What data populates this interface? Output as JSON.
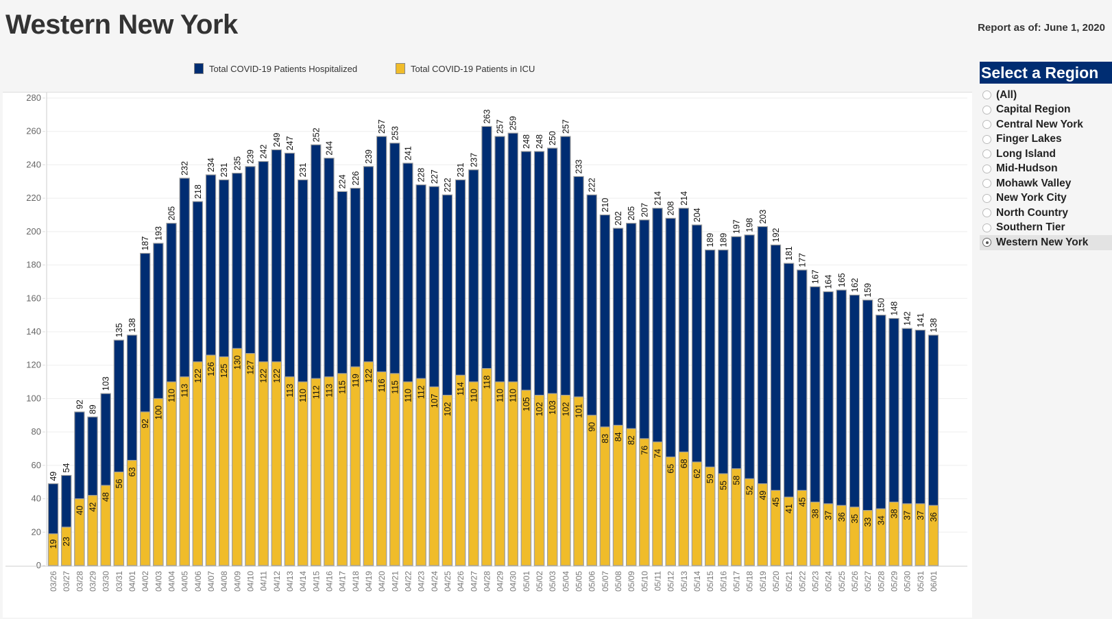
{
  "header": {
    "title": "Western New York",
    "report_date": "Report as of: June 1, 2020"
  },
  "legend": [
    {
      "label": "Total COVID-19 Patients Hospitalized",
      "color": "#002d72"
    },
    {
      "label": "Total COVID-19 Patients in ICU",
      "color": "#f0bc2a"
    }
  ],
  "region_selector": {
    "title": "Select a Region",
    "options": [
      "(All)",
      "Capital Region",
      "Central New York",
      "Finger Lakes",
      "Long Island",
      "Mid-Hudson",
      "Mohawk Valley",
      "New York City",
      "North Country",
      "Southern Tier",
      "Western New York"
    ],
    "selected": "Western New York"
  },
  "chart_data": {
    "type": "bar",
    "title": "",
    "xlabel": "",
    "ylabel": "",
    "ylim": [
      0,
      280
    ],
    "yticks": [
      0,
      20,
      40,
      60,
      80,
      100,
      120,
      140,
      160,
      180,
      200,
      220,
      240,
      260,
      280
    ],
    "grid": true,
    "legend_position": "top",
    "categories": [
      "03/26",
      "03/27",
      "03/28",
      "03/29",
      "03/30",
      "03/31",
      "04/01",
      "04/02",
      "04/03",
      "04/04",
      "04/05",
      "04/06",
      "04/07",
      "04/08",
      "04/09",
      "04/10",
      "04/11",
      "04/12",
      "04/13",
      "04/14",
      "04/15",
      "04/16",
      "04/17",
      "04/18",
      "04/19",
      "04/20",
      "04/21",
      "04/22",
      "04/23",
      "04/24",
      "04/25",
      "04/26",
      "04/27",
      "04/28",
      "04/29",
      "04/30",
      "05/01",
      "05/02",
      "05/03",
      "05/04",
      "05/05",
      "05/06",
      "05/07",
      "05/08",
      "05/09",
      "05/10",
      "05/11",
      "05/12",
      "05/13",
      "05/14",
      "05/15",
      "05/16",
      "05/17",
      "05/18",
      "05/19",
      "05/20",
      "05/21",
      "05/22",
      "05/23",
      "05/24",
      "05/25",
      "05/26",
      "05/27",
      "05/28",
      "05/29",
      "05/30",
      "05/31",
      "06/01"
    ],
    "series": [
      {
        "name": "Total COVID-19 Patients Hospitalized",
        "color": "#002d72",
        "values": [
          49,
          54,
          92,
          89,
          103,
          135,
          138,
          187,
          193,
          205,
          232,
          218,
          234,
          231,
          235,
          239,
          242,
          249,
          247,
          231,
          252,
          244,
          224,
          226,
          239,
          257,
          253,
          241,
          228,
          227,
          222,
          231,
          237,
          263,
          257,
          259,
          248,
          248,
          250,
          257,
          233,
          222,
          210,
          202,
          205,
          207,
          214,
          208,
          214,
          204,
          189,
          189,
          197,
          198,
          203,
          192,
          181,
          177,
          167,
          164,
          165,
          162,
          159,
          150,
          148,
          142,
          141,
          138
        ]
      },
      {
        "name": "Total COVID-19 Patients in ICU",
        "color": "#f0bc2a",
        "values": [
          19,
          23,
          40,
          42,
          48,
          56,
          63,
          92,
          100,
          110,
          113,
          122,
          126,
          125,
          130,
          127,
          122,
          122,
          113,
          110,
          112,
          113,
          115,
          119,
          122,
          116,
          115,
          110,
          112,
          107,
          102,
          114,
          110,
          118,
          110,
          110,
          105,
          102,
          103,
          102,
          101,
          90,
          83,
          84,
          82,
          76,
          74,
          65,
          68,
          62,
          59,
          55,
          58,
          52,
          49,
          45,
          41,
          45,
          38,
          37,
          36,
          35,
          33,
          34,
          38,
          37,
          37,
          36
        ]
      }
    ]
  }
}
